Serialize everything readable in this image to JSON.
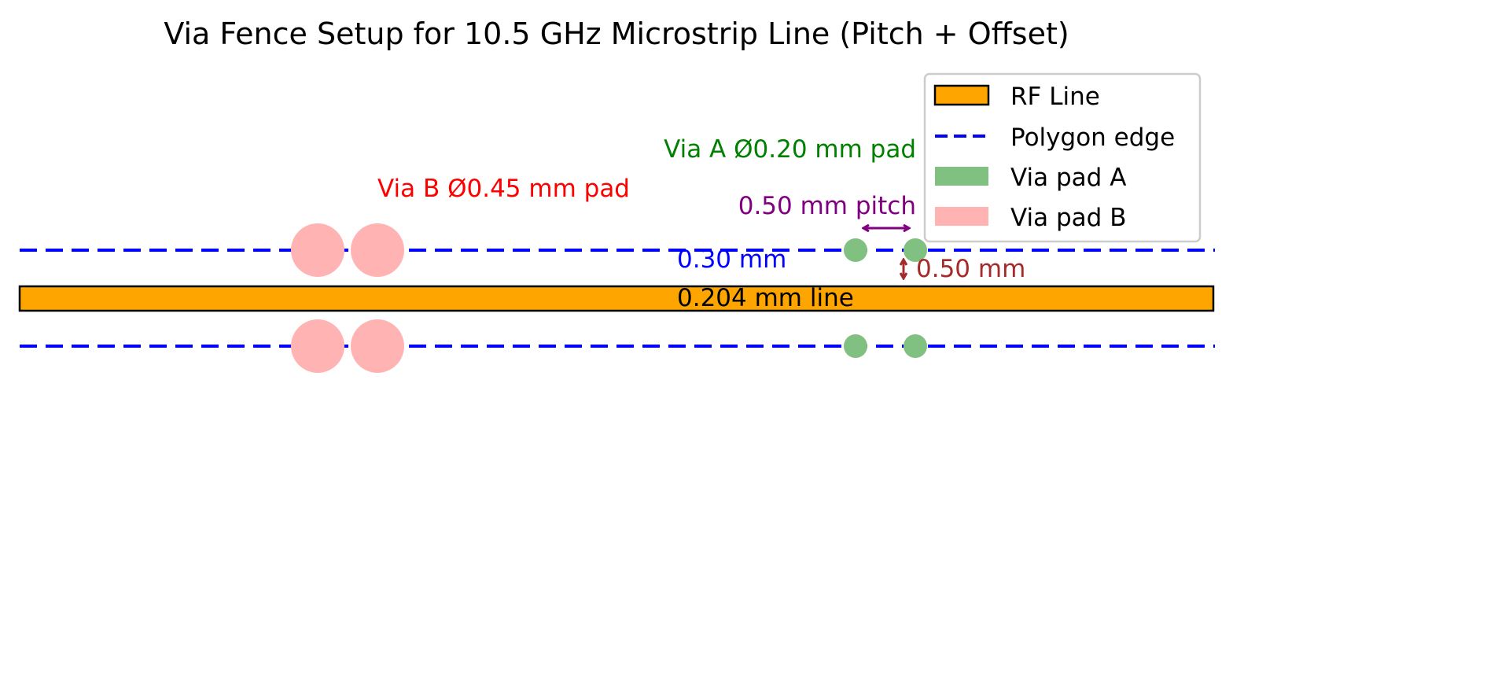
{
  "title": "Via Fence Setup for 10.5 GHz Microstrip Line (Pitch + Offset)",
  "annotations": {
    "via_b": "Via B Ø0.45 mm pad",
    "via_a": "Via A Ø0.20 mm pad",
    "pitch": "0.50 mm pitch",
    "gap": "0.30 mm",
    "line_width": "0.204 mm line",
    "offset": "0.50 mm"
  },
  "legend": {
    "rf_line": "RF Line",
    "polygon_edge": "Polygon edge",
    "via_pad_a": "Via pad A",
    "via_pad_b": "Via pad B"
  },
  "colors": {
    "rf_line": "#FFA500",
    "polygon_edge": "#0000FF",
    "via_pad_a": "#80C080",
    "via_pad_b": "#FFB3B3",
    "via_b_label": "#FF0000",
    "via_a_label": "#008000",
    "pitch": "#800080",
    "offset": "#A52A2A"
  }
}
